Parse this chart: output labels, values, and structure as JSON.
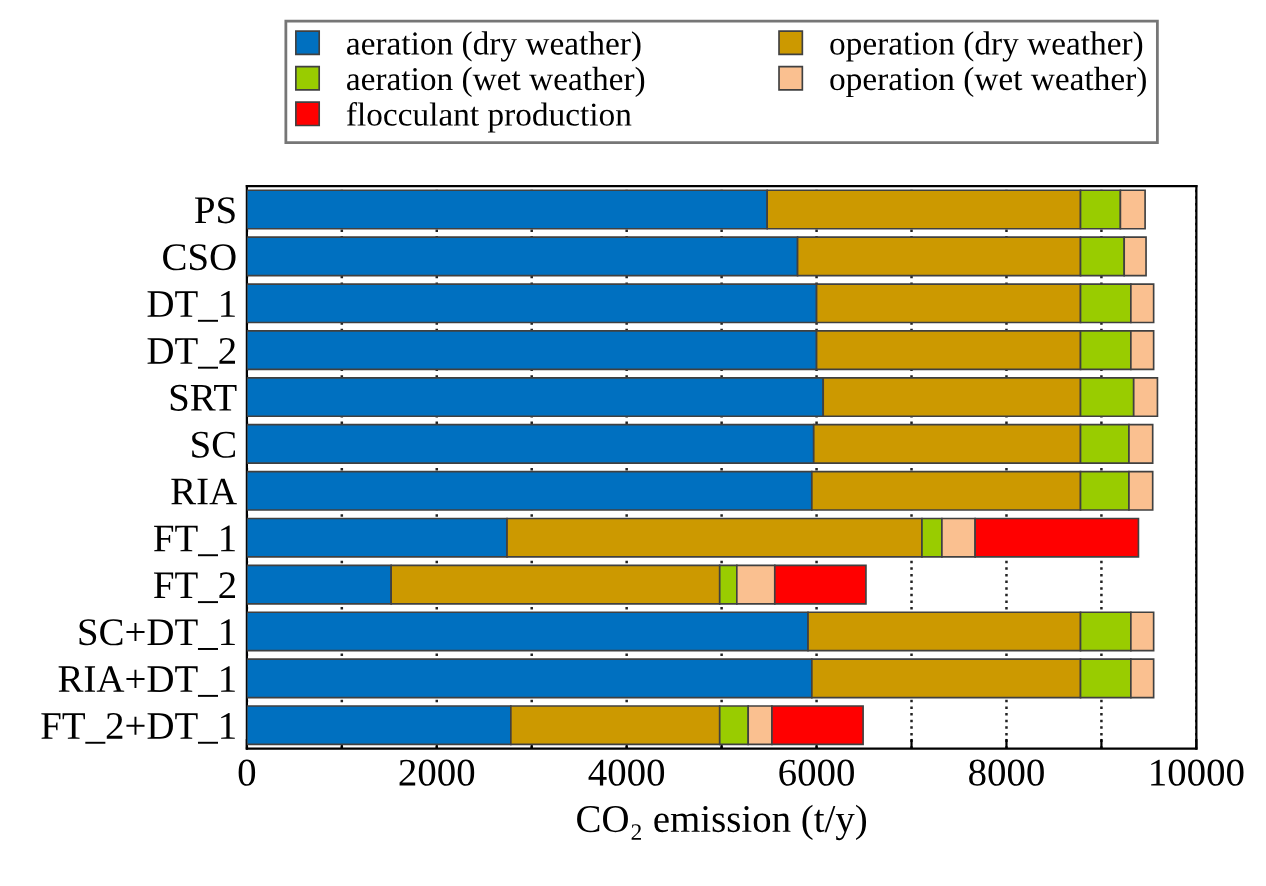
{
  "chart_data": {
    "type": "bar",
    "orientation": "horizontal",
    "stacked": true,
    "xlabel": "CO₂ emission (t/y)",
    "categories": [
      "PS",
      "CSO",
      "DT_1",
      "DT_2",
      "SRT",
      "SC",
      "RIA",
      "FT_1",
      "FT_2",
      "SC+DT_1",
      "RIA+DT_1",
      "FT_2+DT_1"
    ],
    "series": [
      {
        "name": "aeration (dry weather)",
        "color": "#0070c0",
        "values": [
          5480,
          5800,
          6000,
          6000,
          6070,
          5970,
          5950,
          2740,
          1520,
          5910,
          5950,
          2780
        ]
      },
      {
        "name": "operation (dry weather)",
        "color": "#cc9900",
        "values": [
          3300,
          2980,
          2780,
          2780,
          2710,
          2810,
          2830,
          4370,
          3460,
          2870,
          2830,
          2200
        ]
      },
      {
        "name": "aeration (wet weather)",
        "color": "#99cc00",
        "values": [
          420,
          460,
          530,
          530,
          560,
          510,
          510,
          210,
          180,
          530,
          530,
          300
        ]
      },
      {
        "name": "operation (wet weather)",
        "color": "#fac090",
        "values": [
          260,
          230,
          240,
          240,
          250,
          250,
          250,
          350,
          400,
          240,
          240,
          250
        ]
      },
      {
        "name": "flocculant production",
        "color": "#ff0000",
        "values": [
          null,
          null,
          null,
          null,
          null,
          null,
          null,
          1720,
          960,
          null,
          null,
          960
        ]
      }
    ],
    "xlim": [
      0,
      10000
    ],
    "xticks": [
      0,
      {
        "value": 1000,
        "label": null
      },
      2000,
      {
        "value": 3000,
        "label": null
      },
      4000,
      {
        "value": 5000,
        "label": null
      },
      6000,
      {
        "value": 7000,
        "label": null
      },
      8000,
      {
        "value": 9000,
        "label": null
      },
      10000
    ],
    "grid": "x",
    "legend": "top"
  }
}
